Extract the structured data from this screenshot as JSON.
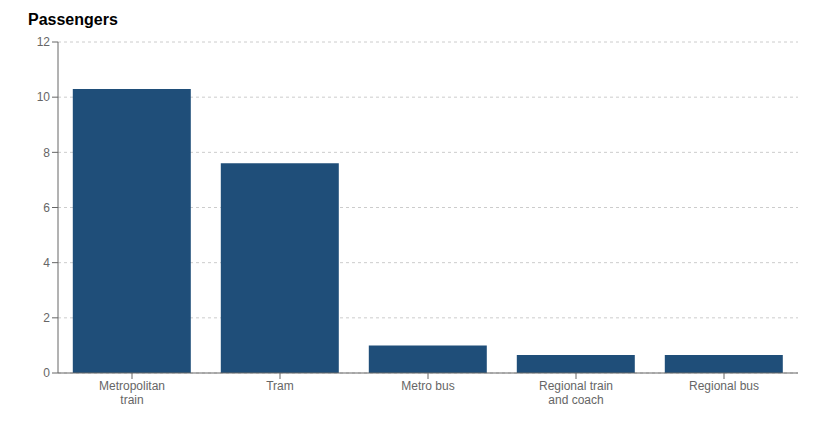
{
  "chart_data": {
    "type": "bar",
    "ylabel": "Passengers",
    "categories": [
      "Metropolitan\ntrain",
      "Tram",
      "Metro bus",
      "Regional train\nand coach",
      "Regional bus"
    ],
    "values": [
      10.3,
      7.6,
      1.0,
      0.65,
      0.65
    ],
    "color": "#1f4e79",
    "ylim": [
      0,
      12
    ],
    "yticks": [
      0,
      2,
      4,
      6,
      8,
      10,
      12
    ],
    "grid": true
  }
}
